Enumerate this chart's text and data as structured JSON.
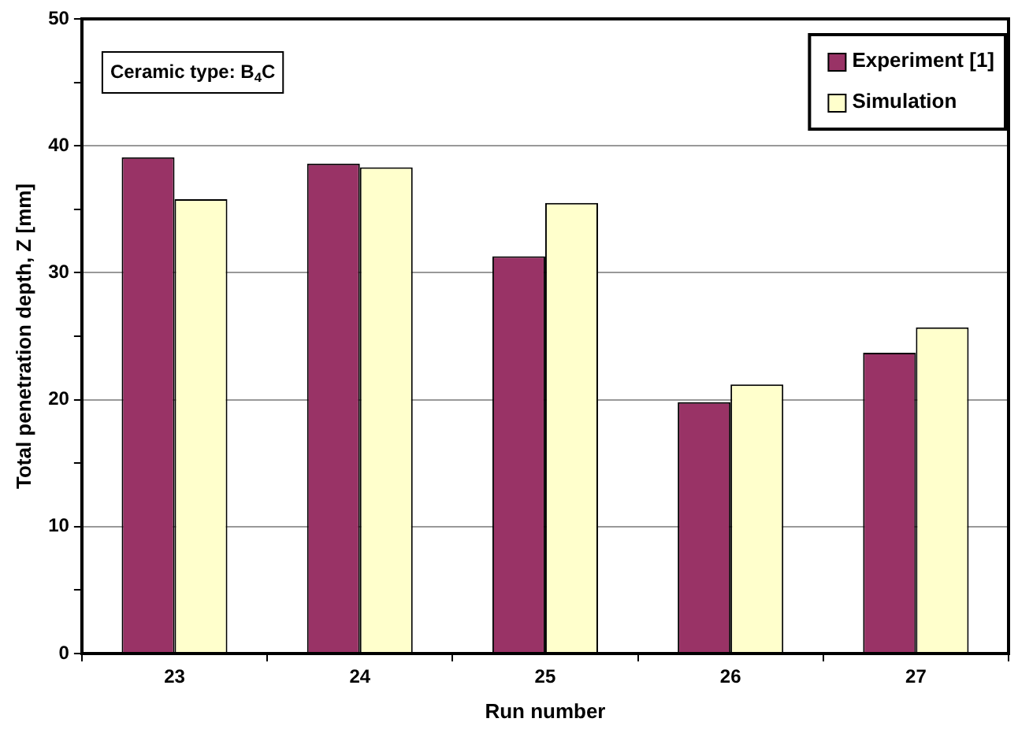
{
  "chart_data": {
    "type": "bar",
    "xlabel": "Run number",
    "ylabel": "Total penetration depth, Z [mm]",
    "categories": [
      "23",
      "24",
      "25",
      "26",
      "27"
    ],
    "series": [
      {
        "name": "Experiment [1]",
        "color": "#993366",
        "values": [
          39.1,
          38.6,
          31.3,
          19.8,
          23.7
        ]
      },
      {
        "name": "Simulation",
        "color": "#ffffcc",
        "values": [
          35.8,
          38.3,
          35.5,
          21.2,
          25.7
        ]
      }
    ],
    "ylim": [
      0,
      50
    ],
    "yticks": [
      0,
      {
        "value": 5,
        "label": null
      },
      10,
      {
        "value": 15,
        "label": null
      },
      20,
      {
        "value": 25,
        "label": null
      },
      30,
      {
        "value": 35,
        "label": null
      },
      40,
      {
        "value": 45,
        "label": null
      },
      50
    ],
    "grid": "y",
    "legend": "top right",
    "annotations": [
      "Ceramic type: B$_{4}$C"
    ]
  }
}
